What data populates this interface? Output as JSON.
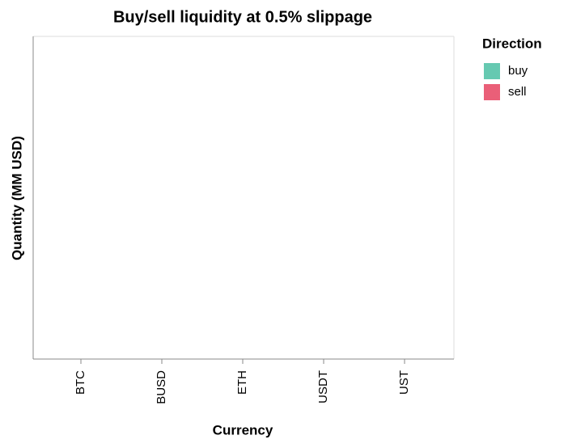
{
  "chart_data": {
    "type": "bar",
    "title": "Buy/sell liquidity at 0.5% slippage",
    "x_label": "Currency",
    "y_label": "Quantity (MM USD)",
    "categories": [
      "BTC",
      "BUSD",
      "ETH",
      "USDT",
      "UST"
    ],
    "legend_title": "Direction",
    "legend": "top-right",
    "series": [
      {
        "name": "buy",
        "color": "#66c9b1",
        "values": [
          null,
          null,
          null,
          null,
          null
        ]
      },
      {
        "name": "sell",
        "color": "#ea5f78",
        "values": [
          null,
          null,
          null,
          null,
          null
        ]
      }
    ]
  }
}
